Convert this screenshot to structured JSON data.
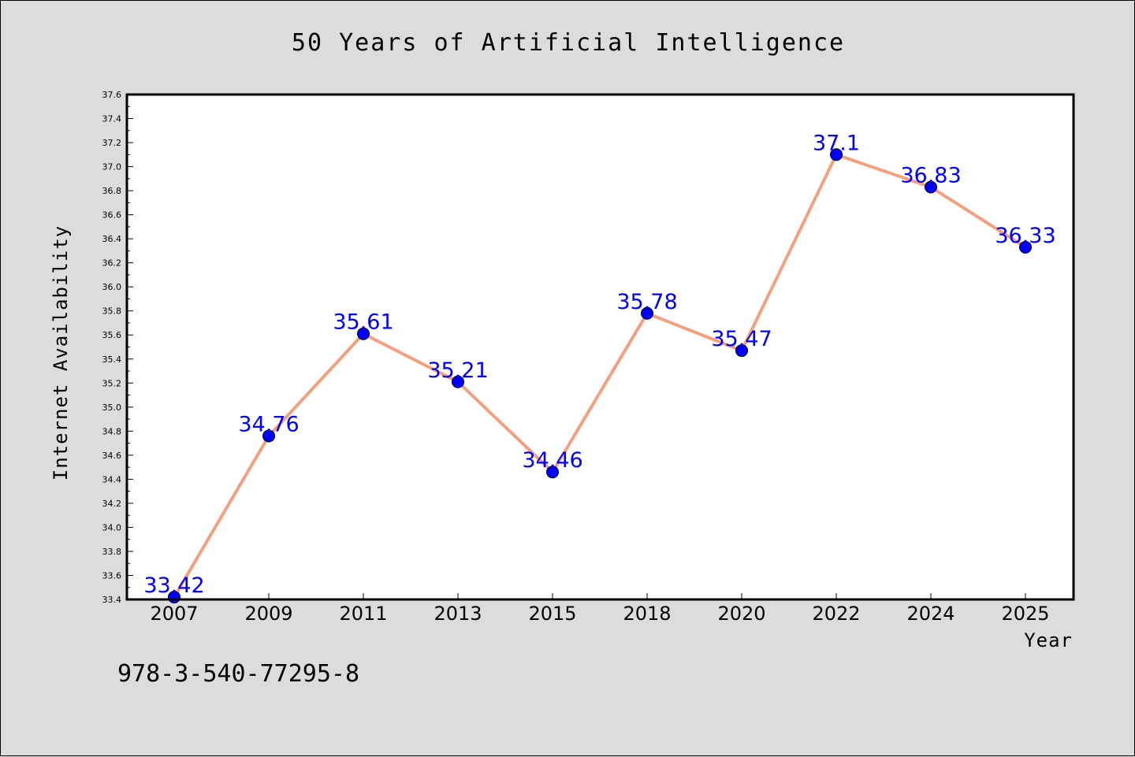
{
  "chart_data": {
    "type": "line",
    "title": "50 Years of Artificial Intelligence",
    "xlabel": "Year",
    "ylabel": "Internet Availability",
    "categories": [
      "2007",
      "2009",
      "2011",
      "2013",
      "2015",
      "2018",
      "2020",
      "2022",
      "2024",
      "2025"
    ],
    "series": [
      {
        "values": [
          33.42,
          34.76,
          35.61,
          35.21,
          34.46,
          35.78,
          35.47,
          37.1,
          36.83,
          36.33
        ],
        "line_color": "#f4a07e",
        "marker_color": "#0000ff"
      }
    ],
    "data_labels": [
      "33.42",
      "34.76",
      "35.61",
      "35.21",
      "34.46",
      "35.78",
      "35.47",
      "37.1",
      "36.83",
      "36.33"
    ],
    "ylim": [
      33.4,
      37.6
    ],
    "y_ticks": [
      "33.4",
      "33.6",
      "33.8",
      "34.0",
      "34.2",
      "34.4",
      "34.6",
      "34.8",
      "35.0",
      "35.2",
      "35.4",
      "35.6",
      "35.8",
      "36.0",
      "36.2",
      "36.4",
      "36.6",
      "36.8",
      "37.0",
      "37.2",
      "37.4",
      "37.6"
    ],
    "grid": false,
    "legend": "none",
    "background_color": "#dcdcdc",
    "plot_background_color": "#ffffff",
    "annotation": "978-3-540-77295-8"
  }
}
